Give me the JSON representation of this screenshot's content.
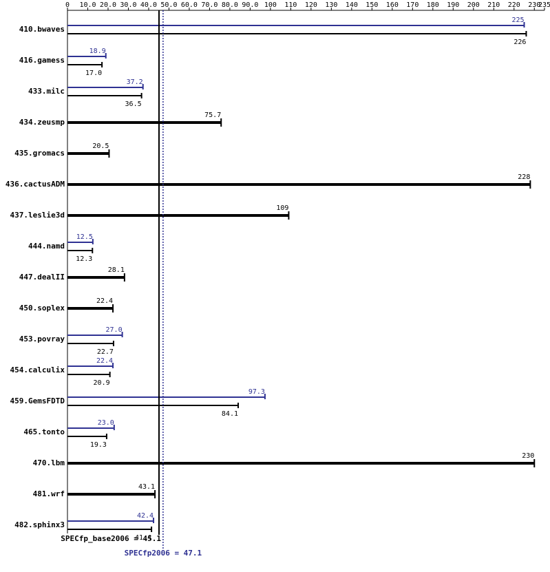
{
  "chart_data": {
    "type": "bar",
    "orientation": "horizontal",
    "categories": [
      "410.bwaves",
      "416.gamess",
      "433.milc",
      "434.zeusmp",
      "435.gromacs",
      "436.cactusADM",
      "437.leslie3d",
      "444.namd",
      "447.dealII",
      "450.soplex",
      "453.povray",
      "454.calculix",
      "459.GemsFDTD",
      "465.tonto",
      "470.lbm",
      "481.wrf",
      "482.sphinx3"
    ],
    "series": [
      {
        "color": "#000000",
        "values": [
          226,
          17.0,
          36.5,
          75.7,
          20.5,
          228,
          109,
          12.3,
          28.1,
          22.4,
          22.7,
          20.9,
          84.1,
          19.3,
          230,
          43.1,
          41.4
        ],
        "value_labels": [
          "226",
          "17.0",
          "36.5",
          "75.7",
          "20.5",
          "228",
          "109",
          "12.3",
          "28.1",
          "22.4",
          "22.7",
          "20.9",
          "84.1",
          "19.3",
          "230",
          "43.1",
          "41.4"
        ]
      },
      {
        "color": "#2e3192",
        "values": [
          225,
          18.9,
          37.2,
          null,
          null,
          null,
          null,
          12.5,
          null,
          null,
          27.0,
          22.4,
          97.3,
          23.0,
          null,
          null,
          42.4
        ],
        "value_labels": [
          "225",
          "18.9",
          "37.2",
          null,
          null,
          null,
          null,
          "12.5",
          null,
          null,
          "27.0",
          "22.4",
          "97.3",
          "23.0",
          null,
          null,
          "42.4"
        ]
      }
    ],
    "xlim": [
      0,
      235
    ],
    "xticks": [
      0,
      {
        "value": 10,
        "label": "10.0"
      },
      {
        "value": 20,
        "label": "20.0"
      },
      {
        "value": 30,
        "label": "30.0"
      },
      {
        "value": 40,
        "label": "40.0"
      },
      {
        "value": 50,
        "label": "50.0"
      },
      {
        "value": 60,
        "label": "60.0"
      },
      {
        "value": 70,
        "label": "70.0"
      },
      {
        "value": 80,
        "label": "80.0"
      },
      {
        "value": 90,
        "label": "90.0"
      },
      100,
      110,
      120,
      130,
      140,
      150,
      160,
      170,
      180,
      190,
      200,
      210,
      220,
      230,
      235
    ],
    "reference_lines": [
      {
        "value": 45.1,
        "label": "SPECfp_base2006 = 45.1",
        "color": "#000000",
        "style": "solid"
      },
      {
        "value": 47.1,
        "label": "SPECfp2006 = 47.1",
        "color": "#2e3192",
        "style": "dotted"
      }
    ]
  }
}
